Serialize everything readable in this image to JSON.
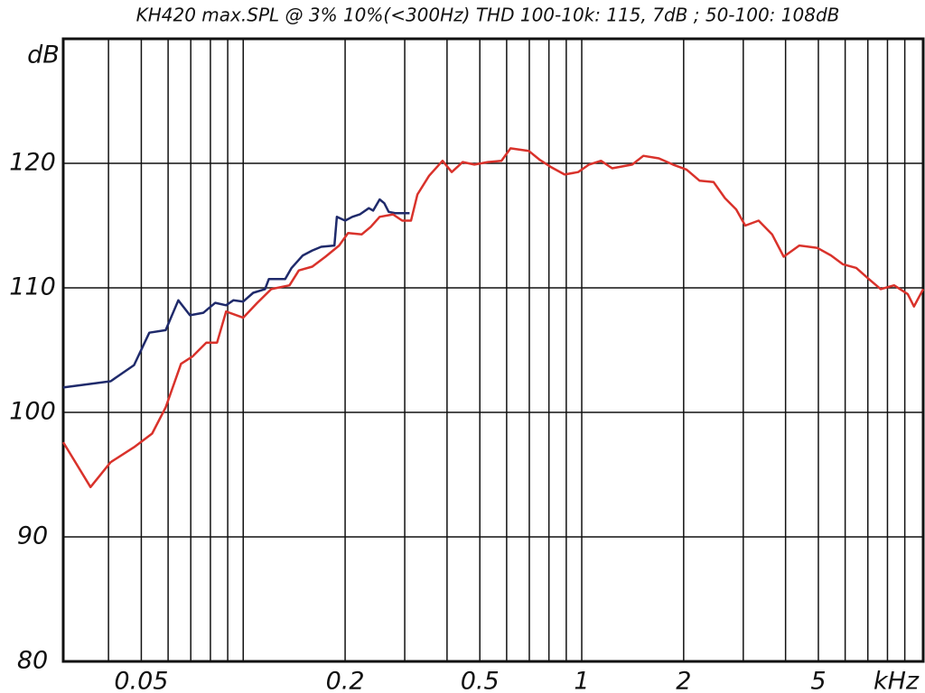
{
  "chart_data": {
    "type": "line",
    "title": "KH420 max.SPL @ 3% 10%(<300Hz) THD 100-10k: 115, 7dB ; 50-100: 108dB",
    "y_label": "dB",
    "x_label": "kHz",
    "log_x": true,
    "grid": true,
    "xlim": [
      0.0294,
      10.2
    ],
    "ylim": [
      80,
      130
    ],
    "xticks": [
      0.05,
      0.2,
      0.5,
      1,
      2,
      5
    ],
    "xgrid": [
      0.04,
      0.05,
      0.06,
      0.07,
      0.08,
      0.09,
      0.1,
      0.2,
      0.3,
      0.4,
      0.5,
      0.6,
      0.7,
      0.8,
      0.9,
      1,
      2,
      3,
      4,
      5,
      6,
      7,
      8,
      9
    ],
    "yticks": [
      80,
      90,
      100,
      110,
      120
    ],
    "series": [
      {
        "name": null,
        "color": "#1f2a6b",
        "x": [
          0.0294,
          0.0406,
          0.0476,
          0.0528,
          0.059,
          0.0643,
          0.0696,
          0.0763,
          0.0827,
          0.089,
          0.0935,
          0.1,
          0.107,
          0.116,
          0.119,
          0.133,
          0.139,
          0.15,
          0.16,
          0.17,
          0.186,
          0.189,
          0.2,
          0.21,
          0.221,
          0.235,
          0.242,
          0.253,
          0.261,
          0.269,
          0.281,
          0.31
        ],
        "values": [
          102.0,
          102.5,
          103.8,
          106.4,
          106.6,
          109.0,
          107.8,
          108.0,
          108.8,
          108.6,
          109.0,
          108.9,
          109.6,
          109.9,
          110.7,
          110.7,
          111.6,
          112.6,
          113.0,
          113.3,
          113.4,
          115.7,
          115.4,
          115.7,
          115.9,
          116.4,
          116.2,
          117.1,
          116.8,
          116.1,
          116.0,
          116.0
        ]
      },
      {
        "name": null,
        "color": "#d9322b",
        "x": [
          0.0294,
          0.0354,
          0.0406,
          0.0476,
          0.0538,
          0.059,
          0.0655,
          0.0709,
          0.0778,
          0.0837,
          0.089,
          0.1,
          0.11,
          0.121,
          0.137,
          0.146,
          0.16,
          0.175,
          0.192,
          0.204,
          0.224,
          0.238,
          0.253,
          0.277,
          0.295,
          0.313,
          0.327,
          0.354,
          0.388,
          0.413,
          0.445,
          0.482,
          0.528,
          0.579,
          0.616,
          0.697,
          0.75,
          0.811,
          0.89,
          0.976,
          1.05,
          1.14,
          1.23,
          1.41,
          1.52,
          1.69,
          1.86,
          2.04,
          2.23,
          2.45,
          2.65,
          2.86,
          3.04,
          3.33,
          3.65,
          3.95,
          4.39,
          4.97,
          5.45,
          5.9,
          6.47,
          7.05,
          7.64,
          8.37,
          9.18,
          9.58,
          10.2
        ],
        "values": [
          97.6,
          94.0,
          96.0,
          97.2,
          98.3,
          100.4,
          103.9,
          104.5,
          105.6,
          105.6,
          108.1,
          107.6,
          108.8,
          109.9,
          110.2,
          111.4,
          111.7,
          112.5,
          113.4,
          114.4,
          114.3,
          114.9,
          115.7,
          115.9,
          115.4,
          115.4,
          117.5,
          119.0,
          120.2,
          119.3,
          120.1,
          119.9,
          120.1,
          120.2,
          121.2,
          121.0,
          120.3,
          119.7,
          119.1,
          119.3,
          119.9,
          120.2,
          119.6,
          119.9,
          120.6,
          120.4,
          119.9,
          119.5,
          118.6,
          118.5,
          117.2,
          116.3,
          115.0,
          115.4,
          114.3,
          112.5,
          113.4,
          113.2,
          112.6,
          111.9,
          111.6,
          110.7,
          109.9,
          110.2,
          109.5,
          108.5,
          109.9
        ]
      }
    ]
  }
}
